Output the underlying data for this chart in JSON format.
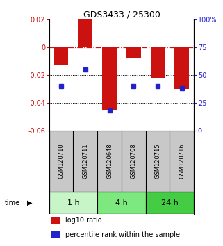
{
  "title": "GDS3433 / 25300",
  "samples": [
    "GSM120710",
    "GSM120711",
    "GSM120648",
    "GSM120708",
    "GSM120715",
    "GSM120716"
  ],
  "groups": [
    {
      "label": "1 h",
      "indices": [
        0,
        1
      ],
      "color": "#c8f5c8"
    },
    {
      "label": "4 h",
      "indices": [
        2,
        3
      ],
      "color": "#7de87d"
    },
    {
      "label": "24 h",
      "indices": [
        4,
        5
      ],
      "color": "#44cc44"
    }
  ],
  "log10_ratio": [
    -0.013,
    0.02,
    -0.045,
    -0.008,
    -0.022,
    -0.03
  ],
  "percentile_rank": [
    40.0,
    55.0,
    18.0,
    40.0,
    40.0,
    38.0
  ],
  "ylim_left": [
    -0.06,
    0.02
  ],
  "ylim_right": [
    0,
    100
  ],
  "yticks_left": [
    0.02,
    0.0,
    -0.02,
    -0.04,
    -0.06
  ],
  "yticks_right": [
    100,
    75,
    50,
    25,
    0
  ],
  "bar_color": "#cc1111",
  "dot_color": "#2222cc",
  "zero_line_color": "#cc1111",
  "grid_color": "#000000",
  "legend_bar_label": "log10 ratio",
  "legend_dot_label": "percentile rank within the sample",
  "time_label": "time",
  "plot_bg": "#ffffff",
  "sample_bg": "#c8c8c8"
}
